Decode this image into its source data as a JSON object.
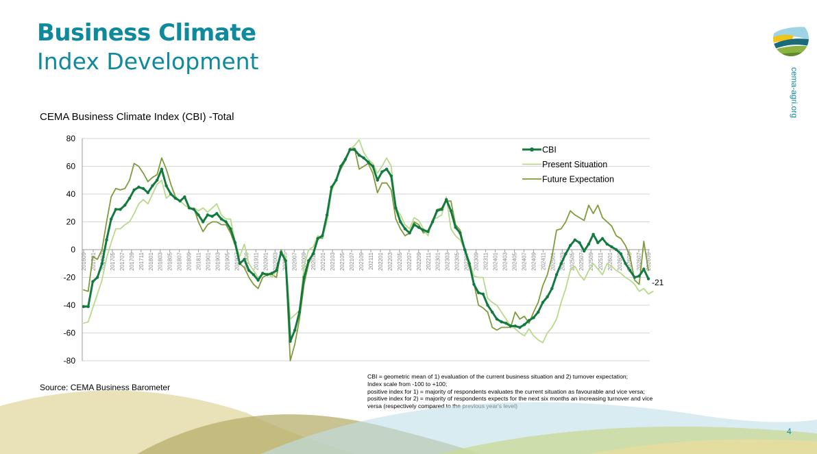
{
  "header": {
    "title_bold": "Business Climate",
    "title_light": "Index Development"
  },
  "side_url": "cema-agri.org",
  "page_number": "4",
  "source": "Source: CEMA Business Barometer",
  "footnote": [
    "CBI = geometric mean of 1) evaluation of the current business situation and 2) turnover expectation;",
    "Index scale from -100 to +100;",
    "positive index for 1) = majority of respondents evaluates the current situation as favourable and vice versa;",
    "positive index for 2) = majority of respondents expects for the next six months an increasing turnover and vice",
    "versa (respectively compared to the previous year's level)"
  ],
  "colors": {
    "brand": "#0e8a9c",
    "cbi": "#127a3f",
    "present": "#b8d98a",
    "future": "#7f9a3a"
  },
  "chart_data": {
    "type": "line",
    "title": "CEMA Business Climate Index (CBI) -Total",
    "ylim": [
      -80,
      80
    ],
    "yticks": [
      80,
      60,
      40,
      20,
      0,
      -20,
      -40,
      -60,
      -80
    ],
    "grid": true,
    "legend_position": "top-right",
    "x_start": "201609",
    "x_labels": [
      "201609",
      "201701",
      "201703",
      "201705",
      "201707",
      "201709",
      "201711",
      "201801",
      "201803",
      "201805",
      "201807",
      "201809",
      "201811",
      "201901",
      "201903",
      "201905",
      "201907",
      "201909",
      "201911",
      "202001",
      "202003",
      "202005",
      "202007",
      "202009",
      "202011",
      "202101",
      "202103",
      "202105",
      "202107",
      "202109",
      "202111",
      "202201",
      "202203",
      "202205",
      "202207",
      "202209",
      "202211",
      "202301",
      "202303",
      "202305",
      "202307",
      "202309",
      "202311",
      "202401",
      "202403",
      "202405",
      "202407",
      "202409",
      "202411",
      "202501",
      "202503",
      "202505",
      "202507",
      "202509",
      "202511",
      "202601",
      "202603",
      "202605",
      "202607",
      "202609"
    ],
    "end_label": "-21",
    "series": [
      {
        "name": "CBI",
        "values": [
          -41,
          -41,
          -23,
          -20,
          -10,
          7,
          22,
          29,
          29,
          32,
          37,
          43,
          45,
          44,
          41,
          46,
          50,
          58,
          46,
          40,
          37,
          35,
          38,
          30,
          29,
          25,
          20,
          25,
          24,
          26,
          22,
          20,
          15,
          5,
          -10,
          -7,
          -15,
          -18,
          -22,
          -17,
          -18,
          -17,
          -15,
          -2,
          -8,
          -66,
          -58,
          -45,
          -20,
          -8,
          -3,
          8,
          10,
          25,
          45,
          50,
          60,
          65,
          72,
          72,
          68,
          66,
          63,
          60,
          50,
          56,
          58,
          53,
          30,
          20,
          15,
          12,
          18,
          16,
          14,
          13,
          20,
          28,
          29,
          36,
          28,
          16,
          12,
          0,
          -10,
          -25,
          -31,
          -32,
          -40,
          -45,
          -50,
          -52,
          -53,
          -55,
          -55,
          -56,
          -54,
          -51,
          -49,
          -45,
          -38,
          -34,
          -28,
          -18,
          -10,
          -3,
          3,
          7,
          5,
          -1,
          4,
          11,
          5,
          8,
          4,
          2,
          0,
          -3,
          -10,
          -15,
          -20,
          -19,
          -14,
          -21
        ]
      },
      {
        "name": "Present Situation",
        "values": [
          -53,
          -52,
          -42,
          -32,
          -22,
          -6,
          5,
          15,
          15,
          18,
          20,
          26,
          33,
          36,
          33,
          40,
          47,
          50,
          37,
          40,
          38,
          35,
          32,
          30,
          30,
          28,
          30,
          27,
          30,
          33,
          25,
          22,
          22,
          5,
          -5,
          4,
          -10,
          -15,
          -20,
          -18,
          -17,
          -20,
          -15,
          -2,
          -5,
          -50,
          -47,
          -44,
          -12,
          0,
          2,
          10,
          9,
          20,
          42,
          50,
          60,
          65,
          72,
          75,
          79,
          70,
          65,
          62,
          55,
          60,
          66,
          60,
          30,
          25,
          18,
          15,
          23,
          21,
          15,
          10,
          22,
          23,
          25,
          38,
          15,
          10,
          7,
          0,
          -8,
          -19,
          -20,
          -20,
          -35,
          -38,
          -40,
          -45,
          -50,
          -55,
          -57,
          -60,
          -62,
          -57,
          -62,
          -65,
          -67,
          -60,
          -56,
          -50,
          -38,
          -28,
          -15,
          -12,
          -18,
          -22,
          -15,
          -10,
          -14,
          -18,
          -10,
          -12,
          -15,
          -17,
          -20,
          -22,
          -25,
          -30,
          -28,
          -32,
          -30
        ]
      },
      {
        "name": "Future Expectation",
        "values": [
          -29,
          -30,
          -5,
          -7,
          0,
          20,
          38,
          44,
          43,
          44,
          50,
          62,
          60,
          55,
          49,
          52,
          54,
          66,
          58,
          47,
          38,
          35,
          38,
          30,
          30,
          20,
          13,
          18,
          20,
          20,
          18,
          18,
          12,
          3,
          -10,
          -13,
          -20,
          -25,
          -28,
          -20,
          -18,
          -18,
          -20,
          0,
          -10,
          -80,
          -68,
          -50,
          -25,
          -10,
          -2,
          9,
          8,
          25,
          45,
          50,
          58,
          64,
          73,
          73,
          58,
          60,
          62,
          55,
          41,
          48,
          48,
          43,
          22,
          15,
          10,
          12,
          20,
          18,
          12,
          13,
          21,
          29,
          30,
          35,
          35,
          18,
          14,
          0,
          -12,
          -24,
          -40,
          -42,
          -45,
          -56,
          -58,
          -56,
          -56,
          -56,
          -45,
          -50,
          -48,
          -53,
          -45,
          -38,
          -26,
          -18,
          -5,
          14,
          15,
          20,
          28,
          25,
          23,
          21,
          32,
          26,
          32,
          23,
          20,
          17,
          10,
          8,
          3,
          -5,
          -22,
          -25,
          6,
          -15
        ]
      }
    ]
  }
}
